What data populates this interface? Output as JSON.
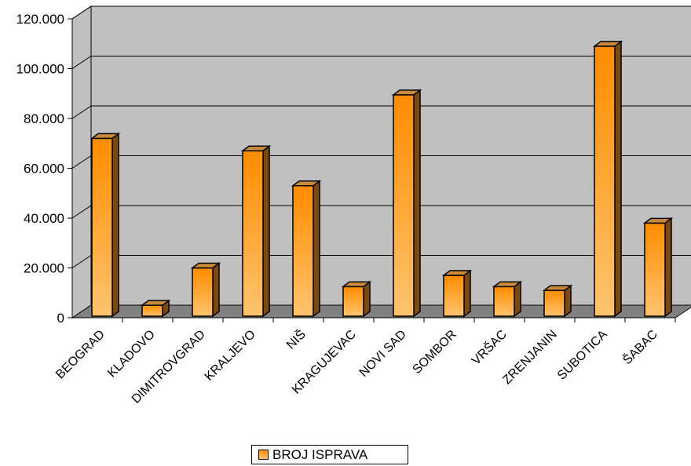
{
  "chart_data": {
    "type": "bar",
    "categories": [
      "BEOGRAD",
      "KLADOVO",
      "DIMITROVGRAD",
      "KRALJEVO",
      "NIŠ",
      "KRAGUJEVAC",
      "NOVI SAD",
      "SOMBOR",
      "VRŠAC",
      "ZRENJANIN",
      "SUBOTICA",
      "ŠABAC"
    ],
    "series": [
      {
        "name": "BROJ ISPRAVA",
        "values": [
          72000,
          5000,
          20000,
          67000,
          53000,
          12500,
          89500,
          17000,
          12500,
          11000,
          109000,
          38000
        ]
      }
    ],
    "ylim": [
      0,
      120000
    ],
    "yticks": [
      "0",
      "20.000",
      "40.000",
      "60.000",
      "80.000",
      "100.000",
      "120.000"
    ],
    "grid": true,
    "legend_position": "bottom",
    "colors": {
      "bar_top": "#ff8c00",
      "bar_bottom": "#ffc46e",
      "bar_side": "#7a4a10",
      "bar_cap": "#c98a3a",
      "wall": "#c0c0c0",
      "floor": "#808080"
    }
  }
}
